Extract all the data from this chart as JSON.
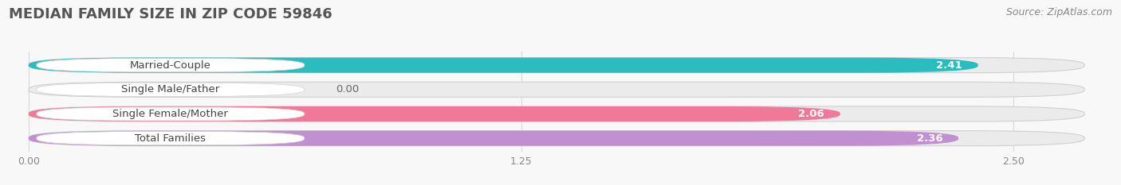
{
  "title": "MEDIAN FAMILY SIZE IN ZIP CODE 59846",
  "source": "Source: ZipAtlas.com",
  "categories": [
    "Married-Couple",
    "Single Male/Father",
    "Single Female/Mother",
    "Total Families"
  ],
  "values": [
    2.41,
    0.0,
    2.06,
    2.36
  ],
  "bar_colors": [
    "#2bbcbf",
    "#a8b8e8",
    "#f07898",
    "#c090d0"
  ],
  "bar_bg_color": "#ebebeb",
  "xlim_data": [
    0,
    2.5
  ],
  "xlim_display": [
    -0.05,
    2.75
  ],
  "xticks": [
    0.0,
    1.25,
    2.5
  ],
  "xtick_labels": [
    "0.00",
    "1.25",
    "2.50"
  ],
  "title_fontsize": 13,
  "source_fontsize": 9,
  "label_fontsize": 9.5,
  "value_fontsize": 9.5,
  "bar_height": 0.62,
  "bar_gap": 1.0,
  "background_color": "#f8f8f8",
  "grid_color": "#d8d8d8",
  "label_bg_color": "#ffffff",
  "title_color": "#555555",
  "source_color": "#888888",
  "value_color_white": "#ffffff",
  "value_color_dark": "#666666",
  "tick_color": "#888888"
}
